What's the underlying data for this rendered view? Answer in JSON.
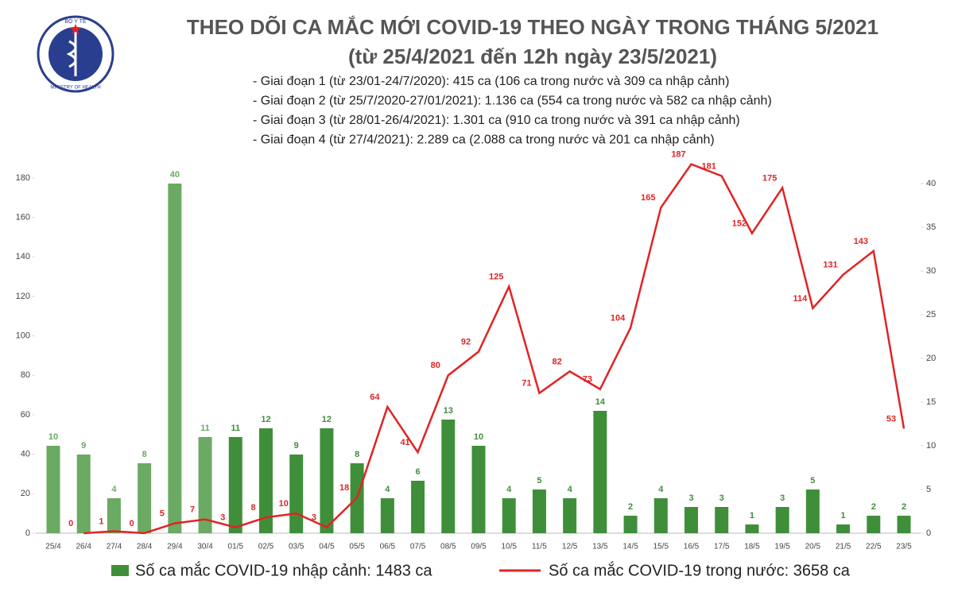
{
  "chart_data": {
    "type": "bar-line",
    "title": "THEO DÕI CA MẮC MỚI COVID-19 THEO NGÀY TRONG THÁNG 5/2021",
    "subtitle": "(từ 25/4/2021 đến 12h ngày 23/5/2021)",
    "notes": [
      "- Giai đoạn 1 (từ 23/01-24/7/2020): 415 ca (106 ca trong nước và 309 ca nhập cảnh)",
      "- Giai đoạn 2 (từ 25/7/2020-27/01/2021): 1.136 ca (554 ca trong nước và 582 ca nhập cảnh)",
      "- Giai đoạn 3 (từ 28/01-26/4/2021): 1.301 ca (910 ca trong nước và 391 ca nhập cảnh)",
      "- Giai đoạn 4 (từ 27/4/2021): 2.289 ca (2.088 ca trong nước và 201 ca nhập cảnh)"
    ],
    "logo": {
      "top": "BỘ Y TẾ",
      "bottom": "MINISTRY OF HEALTH"
    },
    "categories": [
      "25/4",
      "26/4",
      "27/4",
      "28/4",
      "29/4",
      "30/4",
      "01/5",
      "02/5",
      "03/5",
      "04/5",
      "05/5",
      "06/5",
      "07/5",
      "08/5",
      "09/5",
      "10/5",
      "11/5",
      "12/5",
      "13/5",
      "14/5",
      "15/5",
      "16/5",
      "17/5",
      "18/5",
      "19/5",
      "20/5",
      "21/5",
      "22/5",
      "23/5"
    ],
    "series": [
      {
        "name": "Số ca mắc COVID-19 nhập cảnh: 1483 ca",
        "type": "bar",
        "axis": "y2",
        "color": "#3f8f3a",
        "colors": [
          "#6aaa62",
          "#6aaa62",
          "#6aaa62",
          "#6aaa62",
          "#6aaa62",
          "#6aaa62",
          "#3f8f3a",
          "#3f8f3a",
          "#3f8f3a",
          "#3f8f3a",
          "#3f8f3a",
          "#3f8f3a",
          "#3f8f3a",
          "#3f8f3a",
          "#3f8f3a",
          "#3f8f3a",
          "#3f8f3a",
          "#3f8f3a",
          "#3f8f3a",
          "#3f8f3a",
          "#3f8f3a",
          "#3f8f3a",
          "#3f8f3a",
          "#3f8f3a",
          "#3f8f3a",
          "#3f8f3a",
          "#3f8f3a",
          "#3f8f3a",
          "#3f8f3a"
        ],
        "values": [
          10,
          9,
          4,
          8,
          40,
          11,
          11,
          12,
          9,
          12,
          8,
          4,
          6,
          13,
          10,
          4,
          5,
          4,
          14,
          2,
          4,
          3,
          3,
          1,
          3,
          5,
          1,
          2,
          2
        ]
      },
      {
        "name": "Số ca mắc COVID-19 trong nước: 3658 ca",
        "type": "line",
        "axis": "y",
        "color": "#e02424",
        "values": [
          null,
          0,
          1,
          0,
          5,
          7,
          3,
          8,
          10,
          3,
          18,
          64,
          41,
          80,
          92,
          125,
          71,
          82,
          73,
          104,
          165,
          187,
          181,
          152,
          175,
          114,
          131,
          143,
          53
        ]
      }
    ],
    "ylim": [
      0,
      180
    ],
    "yticks": [
      0,
      20,
      40,
      60,
      80,
      100,
      120,
      140,
      160,
      180
    ],
    "y2lim": [
      0,
      40
    ],
    "y2ticks": [
      0,
      5,
      10,
      15,
      20,
      25,
      30,
      35,
      40
    ]
  }
}
